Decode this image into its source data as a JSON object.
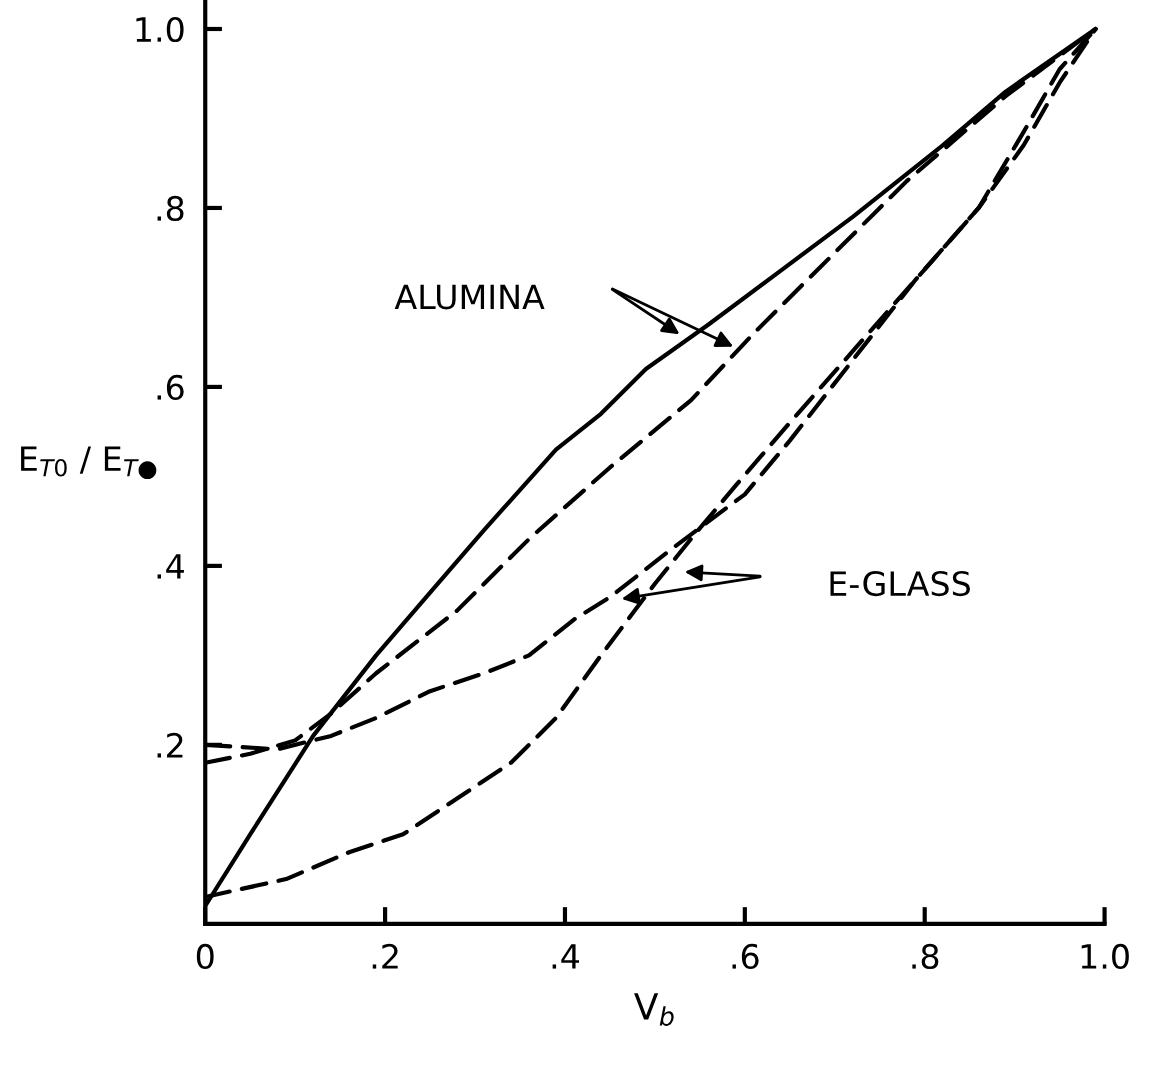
{
  "chart_data": {
    "type": "line",
    "xlabel": "V$_{b}$",
    "ylabel": "E$_{T0}$ / E$_{T●}$",
    "xlim": [
      0,
      1.0
    ],
    "ylim": [
      0,
      1.03
    ],
    "xticks": [
      0,
      {
        "value": 0.2,
        "label": ".2"
      },
      {
        "value": 0.4,
        "label": ".4"
      },
      {
        "value": 0.6,
        "label": ".6"
      },
      {
        "value": 0.8,
        "label": ".8"
      },
      {
        "value": 1.0,
        "label": "1.0"
      }
    ],
    "yticks": [
      {
        "value": 0.2,
        "label": ".2"
      },
      {
        "value": 0.4,
        "label": ".4"
      },
      {
        "value": 0.6,
        "label": ".6"
      },
      {
        "value": 0.8,
        "label": ".8"
      },
      {
        "value": 1.0,
        "label": "1.0"
      }
    ],
    "grid": false,
    "legend": false,
    "marker": "none",
    "series": [
      {
        "color": "#000000",
        "line_style": "solid",
        "x": [
          0,
          0.05,
          0.12,
          0.19,
          0.25,
          0.31,
          0.39,
          0.44,
          0.49,
          0.56,
          0.64,
          0.72,
          0.82,
          0.89,
          0.99
        ],
        "values": [
          0.02,
          0.1,
          0.21,
          0.3,
          0.37,
          0.44,
          0.53,
          0.57,
          0.62,
          0.67,
          0.73,
          0.79,
          0.87,
          0.93,
          1.0
        ]
      },
      {
        "color": "#000000",
        "line_style": "dashed",
        "x": [
          0,
          0.05,
          0.1,
          0.14,
          0.19,
          0.28,
          0.36,
          0.45,
          0.54,
          0.61,
          0.7,
          0.78,
          0.89,
          0.99
        ],
        "values": [
          0.18,
          0.19,
          0.205,
          0.235,
          0.28,
          0.35,
          0.43,
          0.51,
          0.585,
          0.66,
          0.75,
          0.83,
          0.925,
          1.0
        ]
      },
      {
        "color": "#000000",
        "line_style": "dashed",
        "x": [
          0,
          0.08,
          0.14,
          0.19,
          0.25,
          0.31,
          0.36,
          0.41,
          0.45,
          0.52,
          0.6,
          0.65,
          0.72,
          0.79,
          0.86,
          0.91,
          0.95,
          0.99
        ],
        "values": [
          0.2,
          0.195,
          0.21,
          0.23,
          0.26,
          0.28,
          0.3,
          0.34,
          0.365,
          0.42,
          0.48,
          0.54,
          0.63,
          0.72,
          0.8,
          0.885,
          0.955,
          1.0
        ]
      },
      {
        "color": "#000000",
        "line_style": "dashed",
        "x": [
          0,
          0.09,
          0.16,
          0.22,
          0.28,
          0.34,
          0.39,
          0.44,
          0.5,
          0.54,
          0.59,
          0.65,
          0.72,
          0.79,
          0.86,
          0.91,
          0.95,
          0.99
        ],
        "values": [
          0.03,
          0.05,
          0.08,
          0.1,
          0.14,
          0.18,
          0.23,
          0.3,
          0.38,
          0.43,
          0.49,
          0.56,
          0.64,
          0.72,
          0.8,
          0.87,
          0.94,
          1.0
        ]
      }
    ],
    "annotations": [
      "ALUMINA",
      "E-GLASS"
    ]
  }
}
